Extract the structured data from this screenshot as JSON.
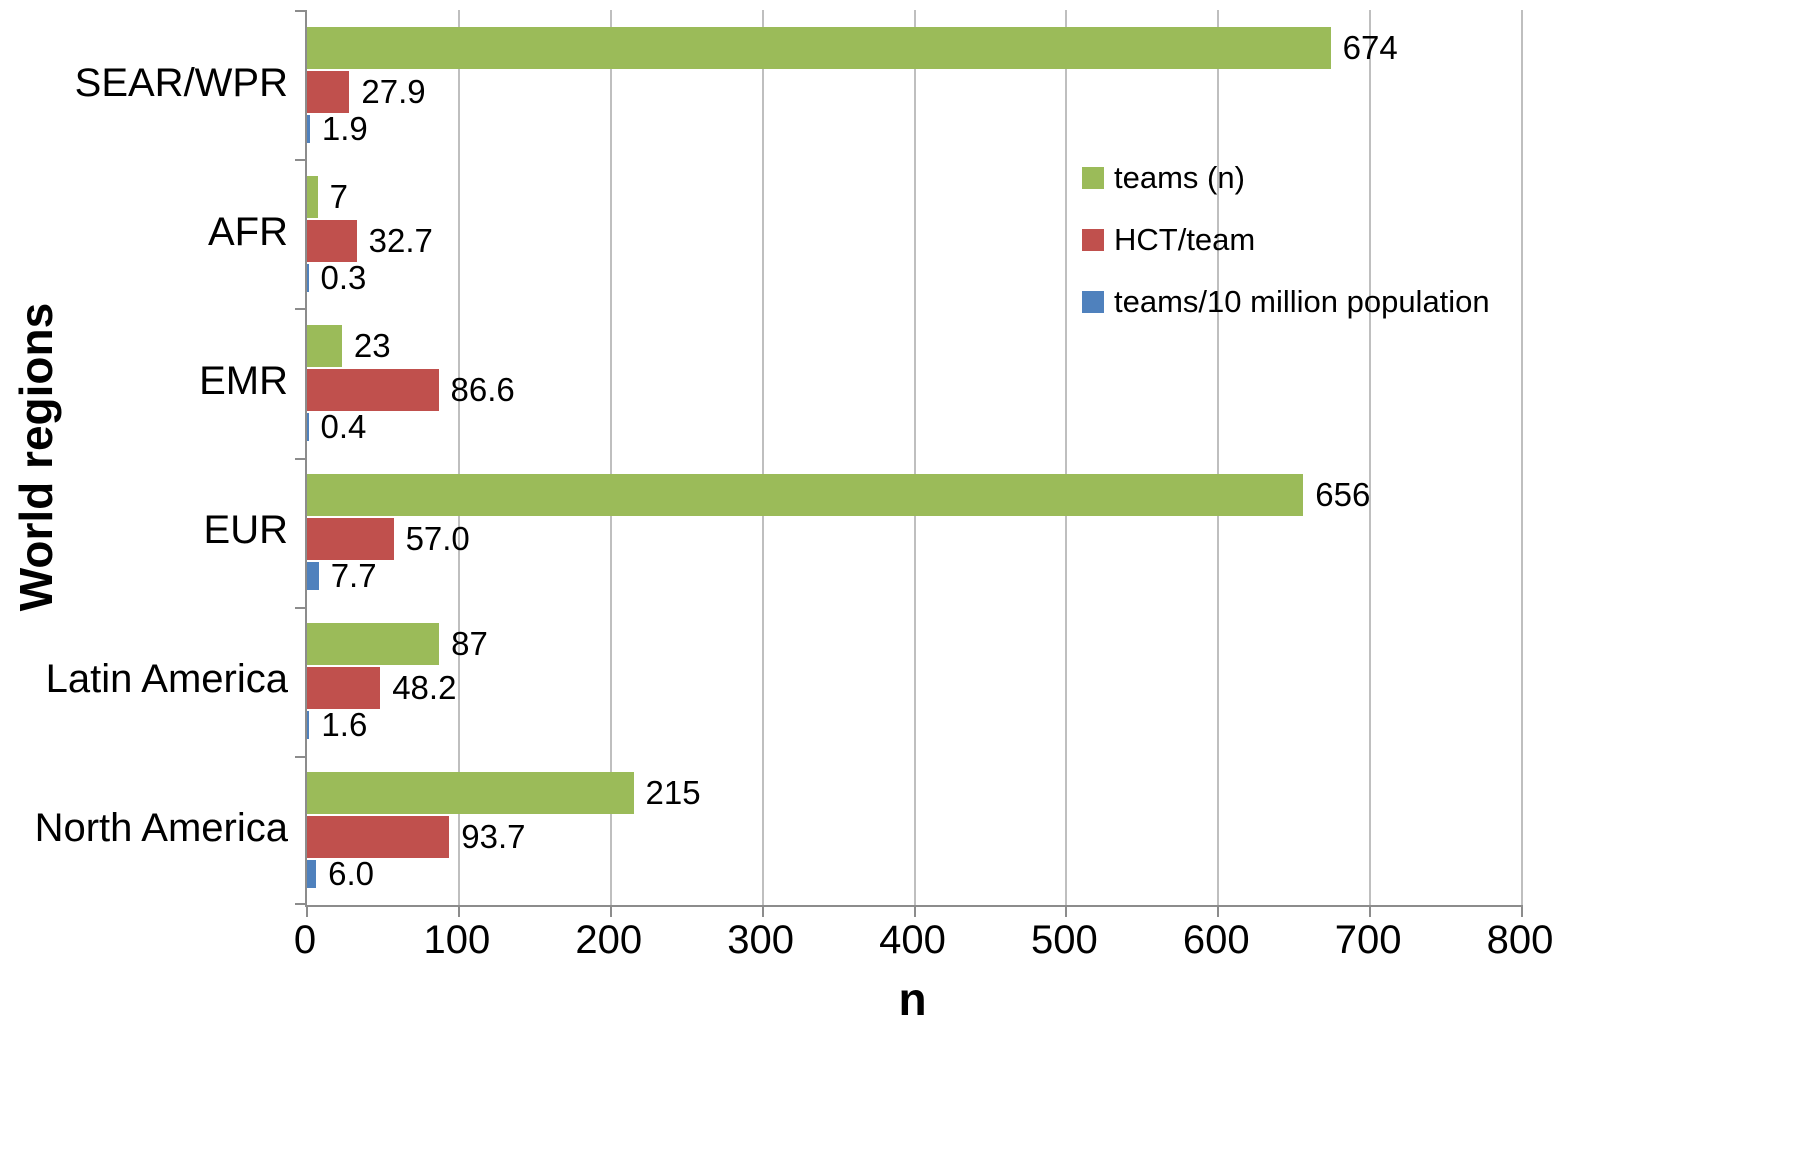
{
  "chart_data": {
    "type": "bar",
    "orientation": "horizontal",
    "title": "",
    "xlabel": "n",
    "ylabel": "World regions",
    "xlim": [
      0,
      800
    ],
    "xticks": [
      0,
      100,
      200,
      300,
      400,
      500,
      600,
      700,
      800
    ],
    "xtick_labels": [
      "0",
      "100",
      "200",
      "300",
      "400",
      "500",
      "600",
      "700",
      "800"
    ],
    "grid": true,
    "legend_position": "upper right",
    "categories": [
      "SEAR/WPR",
      "AFR",
      "EMR",
      "EUR",
      "Latin America",
      "North America"
    ],
    "series": [
      {
        "name": "teams (n)",
        "color": "#9bbb59",
        "values": [
          674,
          7,
          23,
          656,
          87,
          215
        ],
        "labels": [
          "674",
          "7",
          "23",
          "656",
          "87",
          "215"
        ]
      },
      {
        "name": "HCT/team",
        "color": "#c0504d",
        "values": [
          27.9,
          32.7,
          86.6,
          57.0,
          48.2,
          93.7
        ],
        "labels": [
          "27.9",
          "32.7",
          "86.6",
          "57.0",
          "48.2",
          "93.7"
        ]
      },
      {
        "name": "teams/10 million population",
        "color": "#4f81bd",
        "values": [
          1.9,
          0.3,
          0.4,
          7.7,
          1.6,
          6.0
        ],
        "labels": [
          "1.9",
          "0.3",
          "0.4",
          "7.7",
          "1.6",
          "6.0"
        ]
      }
    ]
  },
  "colors": {
    "background": "#ffffff",
    "gridline": "#bfbfbf",
    "axis": "#8c8c8c",
    "text": "#000000"
  }
}
